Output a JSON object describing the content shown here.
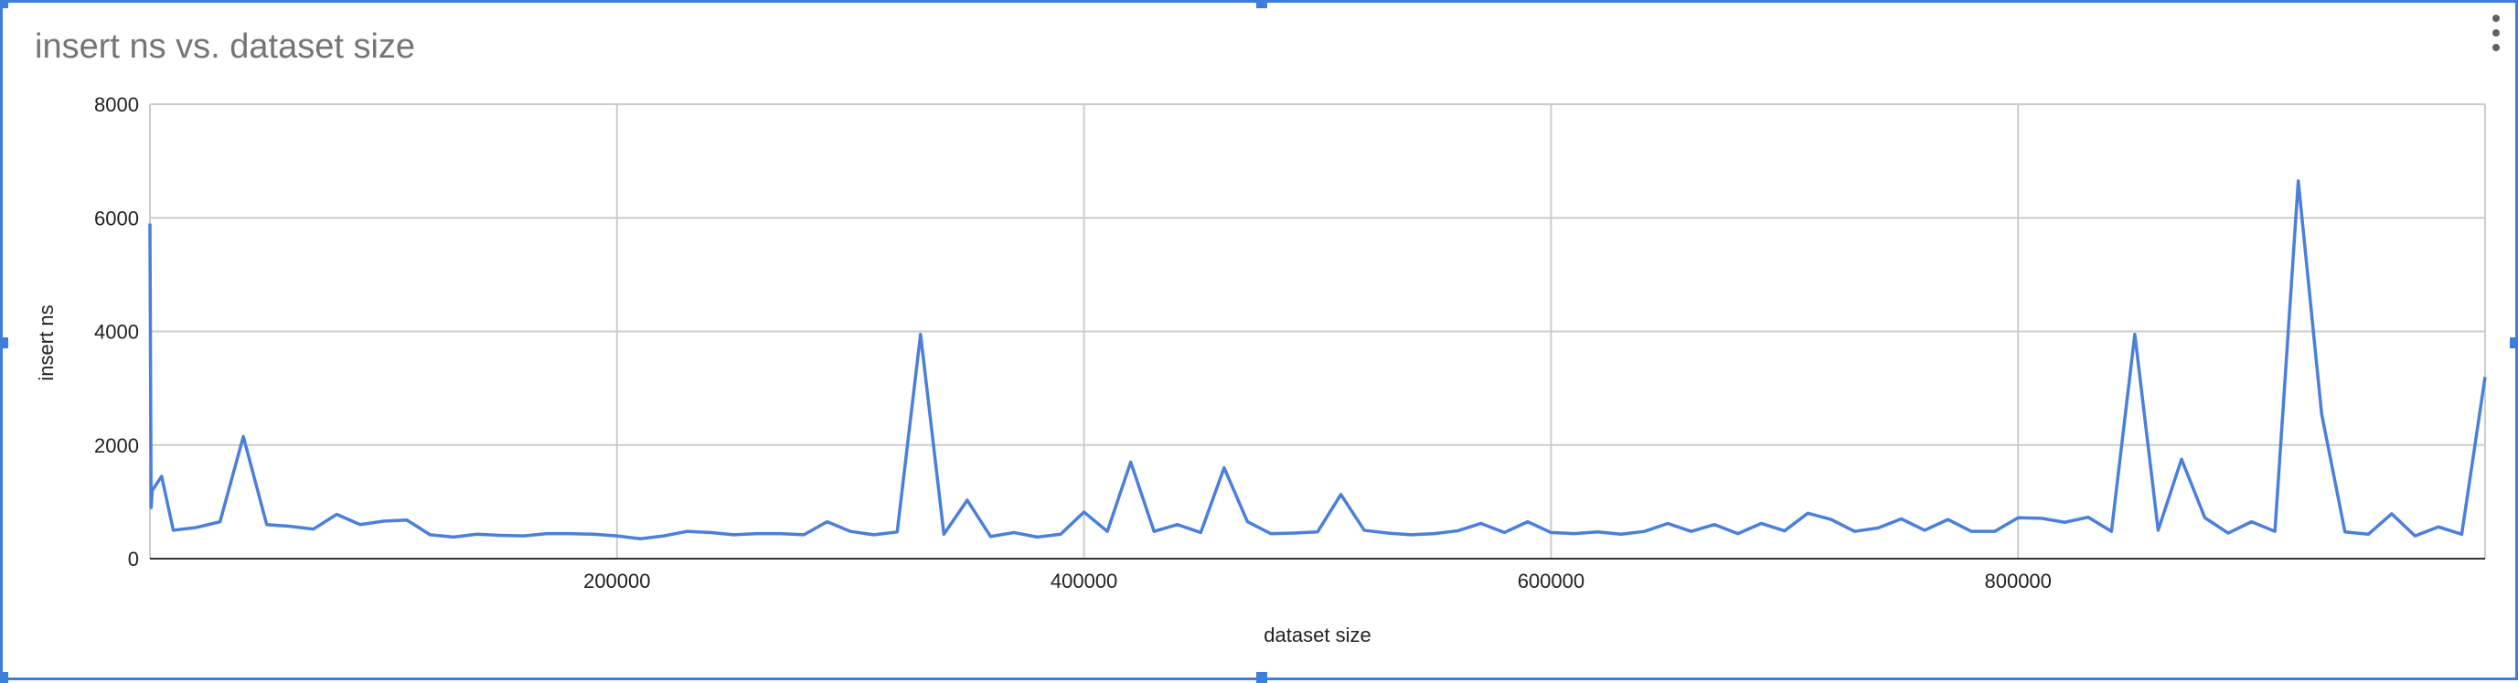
{
  "chart_data": {
    "type": "line",
    "title": "insert ns vs. dataset size",
    "xlabel": "dataset size",
    "ylabel": "insert ns",
    "xlim": [
      0,
      1000000
    ],
    "ylim": [
      0,
      8000
    ],
    "x_ticks": [
      200000,
      400000,
      600000,
      800000
    ],
    "y_ticks": [
      0,
      2000,
      4000,
      6000,
      8000
    ],
    "grid": true,
    "legend": "none",
    "line_color": "#4a7fdc",
    "series": [
      {
        "x": [
          0,
          500,
          1000,
          5000,
          10000,
          20000,
          30000,
          40000,
          50000,
          60000,
          70000,
          80000,
          90000,
          100000,
          110000,
          120000,
          130000,
          140000,
          150000,
          160000,
          170000,
          180000,
          190000,
          200000,
          210000,
          220000,
          230000,
          240000,
          250000,
          260000,
          270000,
          280000,
          290000,
          300000,
          310000,
          320000,
          330000,
          340000,
          350000,
          360000,
          370000,
          380000,
          390000,
          400000,
          410000,
          420000,
          430000,
          440000,
          450000,
          460000,
          470000,
          480000,
          490000,
          500000,
          510000,
          520000,
          530000,
          540000,
          550000,
          560000,
          570000,
          580000,
          590000,
          600000,
          610000,
          620000,
          630000,
          640000,
          650000,
          660000,
          670000,
          680000,
          690000,
          700000,
          710000,
          720000,
          730000,
          740000,
          750000,
          760000,
          770000,
          780000,
          790000,
          800000,
          810000,
          820000,
          830000,
          840000,
          850000,
          860000,
          870000,
          880000,
          890000,
          900000,
          910000,
          920000,
          930000,
          940000,
          950000,
          960000,
          970000,
          980000,
          990000,
          1000000
        ],
        "y": [
          5900,
          900,
          1200,
          1450,
          500,
          550,
          650,
          2150,
          600,
          570,
          520,
          780,
          600,
          660,
          680,
          420,
          380,
          430,
          410,
          400,
          440,
          440,
          430,
          400,
          350,
          400,
          480,
          460,
          420,
          440,
          440,
          420,
          650,
          480,
          420,
          470,
          3950,
          430,
          1030,
          390,
          460,
          380,
          430,
          820,
          480,
          1700,
          480,
          600,
          460,
          1600,
          650,
          440,
          450,
          470,
          1130,
          500,
          450,
          420,
          440,
          490,
          620,
          460,
          650,
          460,
          440,
          470,
          430,
          480,
          620,
          480,
          600,
          440,
          620,
          490,
          800,
          690,
          480,
          540,
          700,
          500,
          690,
          480,
          480,
          720,
          710,
          640,
          730,
          480,
          3950,
          500,
          1750,
          720,
          450,
          650,
          480,
          6650,
          2550,
          470,
          430,
          790,
          400,
          560,
          430,
          3200
        ]
      }
    ]
  }
}
